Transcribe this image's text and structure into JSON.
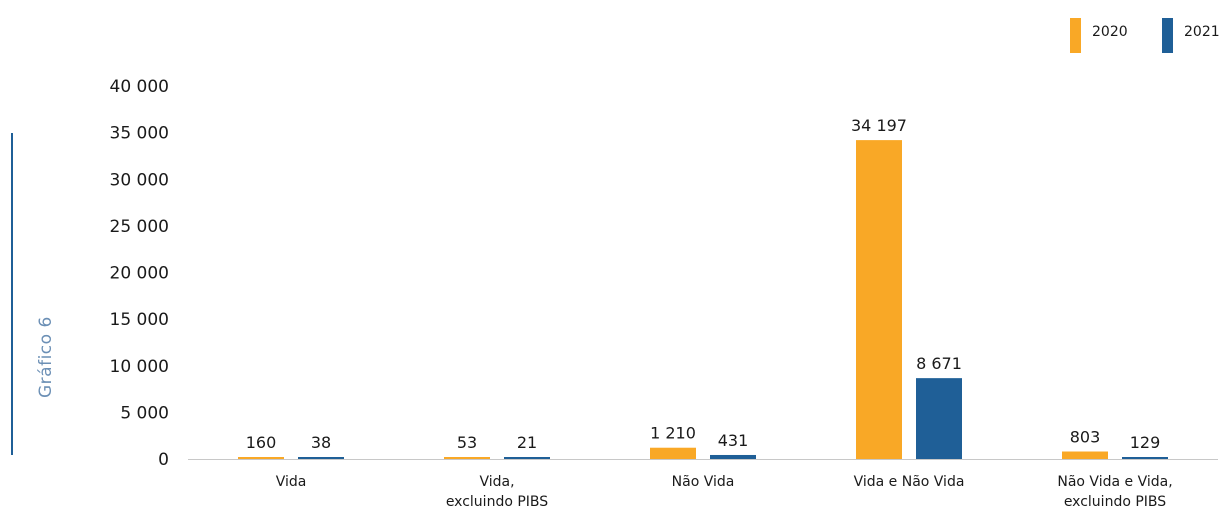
{
  "side_label": "Gráfico 6",
  "colors": {
    "2020": "#f9a826",
    "2021": "#1f5f97"
  },
  "chart_data": {
    "type": "bar",
    "categories": [
      [
        "Vida"
      ],
      [
        "Vida,",
        "excluindo PIBS"
      ],
      [
        "Não Vida"
      ],
      [
        "Vida e Não Vida"
      ],
      [
        "Não Vida e Vida,",
        "excluindo PIBS"
      ]
    ],
    "series": [
      {
        "name": "2020",
        "values": [
          160,
          53,
          1210,
          34197,
          803
        ],
        "labels": [
          "160",
          "53",
          "1 210",
          "34 197",
          "803"
        ]
      },
      {
        "name": "2021",
        "values": [
          38,
          21,
          431,
          8671,
          129
        ],
        "labels": [
          "38",
          "21",
          "431",
          "8 671",
          "129"
        ]
      }
    ],
    "yticks": [
      "0",
      "5 000",
      "10 000",
      "15 000",
      "20 000",
      "25 000",
      "30 000",
      "35 000",
      "40 000"
    ],
    "ylim": [
      0,
      40000
    ],
    "grid": false,
    "legend_position": "top-right"
  }
}
